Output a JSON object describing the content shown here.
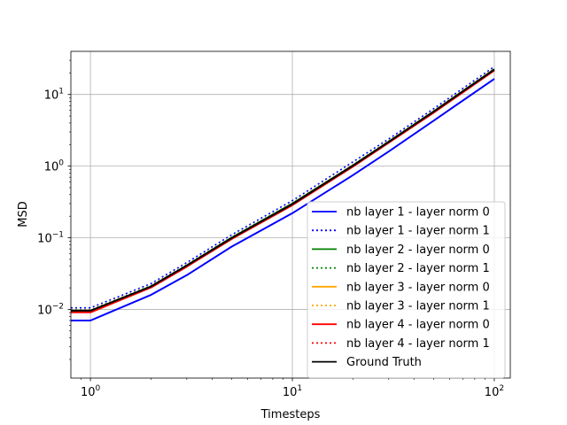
{
  "chart_data": {
    "type": "line",
    "title": "",
    "xlabel": "Timesteps",
    "ylabel": "MSD",
    "xscale": "log",
    "yscale": "log",
    "xlim": [
      0.8,
      120
    ],
    "ylim": [
      0.0011,
      40
    ],
    "grid": true,
    "legend_position": "lower-right",
    "x_ticks": [
      {
        "value": 1,
        "base": "10",
        "exp": "0"
      },
      {
        "value": 10,
        "base": "10",
        "exp": "1"
      },
      {
        "value": 100,
        "base": "10",
        "exp": "2"
      }
    ],
    "y_ticks": [
      {
        "value": 0.01,
        "base": "10",
        "exp": "−2"
      },
      {
        "value": 0.1,
        "base": "10",
        "exp": "−1"
      },
      {
        "value": 1,
        "base": "10",
        "exp": "0"
      },
      {
        "value": 10,
        "base": "10",
        "exp": "1"
      }
    ],
    "series": [
      {
        "name": "nb layer 1 - layer norm 0",
        "color": "#0000ff",
        "style": "solid",
        "x": [
          0.8,
          1,
          2,
          3,
          5,
          10,
          20,
          30,
          50,
          100
        ],
        "y": [
          0.007,
          0.007,
          0.016,
          0.03,
          0.075,
          0.22,
          0.75,
          1.6,
          4.3,
          16.5
        ]
      },
      {
        "name": "nb layer 1 - layer norm 1",
        "color": "#0000ff",
        "style": "dotted",
        "x": [
          0.8,
          1,
          2,
          3,
          5,
          10,
          20,
          30,
          50,
          100
        ],
        "y": [
          0.0105,
          0.0105,
          0.023,
          0.045,
          0.11,
          0.33,
          1.15,
          2.4,
          6.3,
          24.5
        ]
      },
      {
        "name": "nb layer 2 - layer norm 0",
        "color": "#008000",
        "style": "solid",
        "x": [
          0.8,
          1,
          2,
          3,
          5,
          10,
          20,
          30,
          50,
          100
        ],
        "y": [
          0.0095,
          0.0095,
          0.021,
          0.041,
          0.1,
          0.3,
          1.03,
          2.2,
          5.8,
          22.5
        ]
      },
      {
        "name": "nb layer 2 - layer norm 1",
        "color": "#008000",
        "style": "dotted",
        "x": [
          0.8,
          1,
          2,
          3,
          5,
          10,
          20,
          30,
          50,
          100
        ],
        "y": [
          0.0098,
          0.0098,
          0.0215,
          0.042,
          0.102,
          0.305,
          1.05,
          2.25,
          5.9,
          23
        ]
      },
      {
        "name": "nb layer 3 - layer norm 0",
        "color": "#ffa500",
        "style": "solid",
        "x": [
          0.8,
          1,
          2,
          3,
          5,
          10,
          20,
          30,
          50,
          100
        ],
        "y": [
          0.0092,
          0.0092,
          0.0205,
          0.04,
          0.097,
          0.29,
          1.0,
          2.15,
          5.6,
          22
        ]
      },
      {
        "name": "nb layer 3 - layer norm 1",
        "color": "#ffa500",
        "style": "dotted",
        "x": [
          0.8,
          1,
          2,
          3,
          5,
          10,
          20,
          30,
          50,
          100
        ],
        "y": [
          0.0097,
          0.0097,
          0.0212,
          0.0415,
          0.1,
          0.3,
          1.04,
          2.22,
          5.85,
          22.8
        ]
      },
      {
        "name": "nb layer 4 - layer norm 0",
        "color": "#ff0000",
        "style": "solid",
        "x": [
          0.8,
          1,
          2,
          3,
          5,
          10,
          20,
          30,
          50,
          100
        ],
        "y": [
          0.0091,
          0.0091,
          0.0203,
          0.0395,
          0.096,
          0.285,
          0.99,
          2.12,
          5.55,
          21.7
        ]
      },
      {
        "name": "nb layer 4 - layer norm 1",
        "color": "#ff0000",
        "style": "dotted",
        "x": [
          0.8,
          1,
          2,
          3,
          5,
          10,
          20,
          30,
          50,
          100
        ],
        "y": [
          0.0094,
          0.0094,
          0.0208,
          0.0405,
          0.098,
          0.292,
          1.01,
          2.17,
          5.7,
          22.2
        ]
      },
      {
        "name": "Ground Truth",
        "color": "#000000",
        "style": "solid",
        "x": [
          0.8,
          1,
          2,
          3,
          5,
          10,
          20,
          30,
          50,
          100
        ],
        "y": [
          0.0096,
          0.0096,
          0.021,
          0.041,
          0.099,
          0.295,
          1.02,
          2.18,
          5.75,
          22.3
        ]
      }
    ]
  }
}
